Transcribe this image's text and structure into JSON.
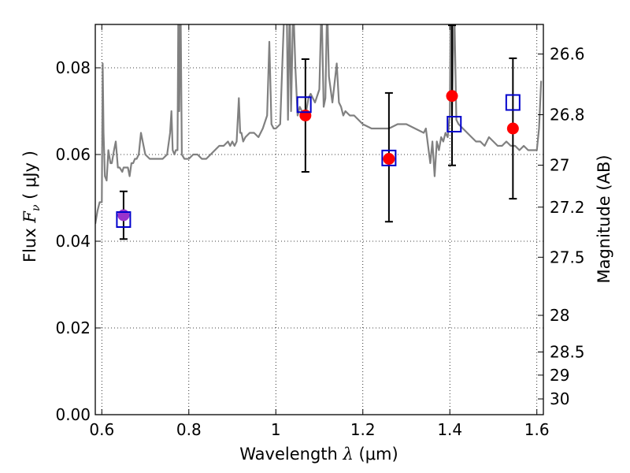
{
  "chart_data": {
    "type": "scatter",
    "title": "",
    "xlabel": "Wavelength  λ (μm)",
    "xlabel_text": "Wavelength ",
    "xlabel_math": "λ",
    "xlabel_unit": " (μm)",
    "ylabel": "Flux  F_ν ( μJy )",
    "ylabel_text": "Flux ",
    "ylabel_math": "F",
    "ylabel_sub": "ν",
    "ylabel_unit": " ( μJy )",
    "y2label": "Magnitude (AB)",
    "xlim": [
      0.585,
      1.615
    ],
    "ylim": [
      0.0,
      0.09
    ],
    "grid": true,
    "grid_style": "dotted",
    "xticks": [
      0.6,
      0.8,
      1.0,
      1.2,
      1.4,
      1.6
    ],
    "xtick_labels": [
      "0.6",
      "0.8",
      "1",
      "1.2",
      "1.4",
      "1.6"
    ],
    "yticks": [
      0.0,
      0.02,
      0.04,
      0.06,
      0.08
    ],
    "ytick_labels": [
      "0.00",
      "0.02",
      "0.04",
      "0.06",
      "0.08"
    ],
    "y2ticks": [
      26.6,
      26.8,
      27.0,
      27.2,
      27.5,
      28.0,
      28.5,
      29.0,
      30.0
    ],
    "y2tick_labels": [
      "26.6",
      "26.8",
      "27",
      "27.2",
      "27.5",
      "28",
      "28.5",
      "29",
      "30"
    ],
    "colors": {
      "spectrum": "#808080",
      "observed": "#ff0000",
      "model": "#0000cc",
      "errorbar": "#000000",
      "overlap": "#9933cc"
    },
    "spectrum": {
      "name": "model spectrum",
      "x": [
        0.585,
        0.59,
        0.595,
        0.6,
        0.602,
        0.604,
        0.607,
        0.611,
        0.615,
        0.62,
        0.623,
        0.628,
        0.632,
        0.637,
        0.641,
        0.647,
        0.65,
        0.655,
        0.66,
        0.664,
        0.668,
        0.672,
        0.676,
        0.68,
        0.685,
        0.69,
        0.7,
        0.71,
        0.72,
        0.73,
        0.74,
        0.75,
        0.757,
        0.76,
        0.763,
        0.767,
        0.77,
        0.774,
        0.776,
        0.778,
        0.781,
        0.784,
        0.79,
        0.8,
        0.81,
        0.82,
        0.83,
        0.84,
        0.85,
        0.86,
        0.87,
        0.88,
        0.89,
        0.895,
        0.9,
        0.905,
        0.91,
        0.915,
        0.918,
        0.921,
        0.925,
        0.93,
        0.94,
        0.95,
        0.96,
        0.97,
        0.98,
        0.985,
        0.99,
        0.995,
        1.0,
        1.01,
        1.02,
        1.025,
        1.028,
        1.032,
        1.035,
        1.04,
        1.045,
        1.05,
        1.055,
        1.06,
        1.066,
        1.07,
        1.075,
        1.08,
        1.09,
        1.1,
        1.105,
        1.11,
        1.114,
        1.118,
        1.122,
        1.13,
        1.14,
        1.145,
        1.15,
        1.155,
        1.16,
        1.17,
        1.18,
        1.2,
        1.22,
        1.24,
        1.26,
        1.28,
        1.3,
        1.32,
        1.34,
        1.345,
        1.35,
        1.355,
        1.36,
        1.365,
        1.37,
        1.375,
        1.38,
        1.385,
        1.39,
        1.395,
        1.4,
        1.402,
        1.405,
        1.41,
        1.415,
        1.42,
        1.43,
        1.44,
        1.45,
        1.46,
        1.47,
        1.48,
        1.49,
        1.5,
        1.51,
        1.52,
        1.53,
        1.54,
        1.55,
        1.56,
        1.57,
        1.58,
        1.59,
        1.6,
        1.605,
        1.61
      ],
      "y": [
        0.044,
        0.047,
        0.049,
        0.049,
        0.081,
        0.065,
        0.055,
        0.054,
        0.061,
        0.058,
        0.058,
        0.061,
        0.063,
        0.057,
        0.057,
        0.056,
        0.057,
        0.057,
        0.057,
        0.055,
        0.058,
        0.058,
        0.059,
        0.059,
        0.06,
        0.065,
        0.06,
        0.059,
        0.059,
        0.059,
        0.059,
        0.06,
        0.065,
        0.07,
        0.061,
        0.06,
        0.061,
        0.061,
        0.095,
        0.07,
        0.095,
        0.06,
        0.059,
        0.059,
        0.06,
        0.06,
        0.059,
        0.059,
        0.06,
        0.061,
        0.062,
        0.062,
        0.063,
        0.062,
        0.063,
        0.062,
        0.063,
        0.073,
        0.065,
        0.065,
        0.063,
        0.064,
        0.065,
        0.065,
        0.064,
        0.066,
        0.069,
        0.086,
        0.067,
        0.066,
        0.066,
        0.067,
        0.095,
        0.095,
        0.068,
        0.095,
        0.07,
        0.095,
        0.08,
        0.069,
        0.071,
        0.07,
        0.069,
        0.07,
        0.073,
        0.074,
        0.072,
        0.075,
        0.095,
        0.071,
        0.073,
        0.095,
        0.078,
        0.072,
        0.081,
        0.072,
        0.071,
        0.069,
        0.07,
        0.069,
        0.069,
        0.067,
        0.066,
        0.066,
        0.066,
        0.067,
        0.067,
        0.066,
        0.065,
        0.066,
        0.062,
        0.058,
        0.063,
        0.055,
        0.063,
        0.061,
        0.064,
        0.063,
        0.065,
        0.064,
        0.069,
        0.095,
        0.069,
        0.095,
        0.068,
        0.067,
        0.066,
        0.065,
        0.064,
        0.063,
        0.063,
        0.062,
        0.064,
        0.063,
        0.062,
        0.062,
        0.063,
        0.062,
        0.062,
        0.061,
        0.062,
        0.061,
        0.061,
        0.061,
        0.066,
        0.077
      ]
    },
    "observed": {
      "name": "observed",
      "marker": "circle",
      "x": [
        0.65,
        1.068,
        1.26,
        1.405,
        1.545
      ],
      "y": [
        0.046,
        0.069,
        0.059,
        0.0735,
        0.066
      ],
      "err_low": [
        0.0055,
        0.013,
        0.0145,
        0.016,
        0.0162
      ],
      "err_high": [
        0.0055,
        0.013,
        0.0152,
        0.0163,
        0.0162
      ]
    },
    "model_points": {
      "name": "model",
      "marker": "square",
      "x": [
        0.65,
        1.065,
        1.26,
        1.41,
        1.545
      ],
      "y": [
        0.045,
        0.0715,
        0.0592,
        0.067,
        0.072
      ]
    }
  }
}
